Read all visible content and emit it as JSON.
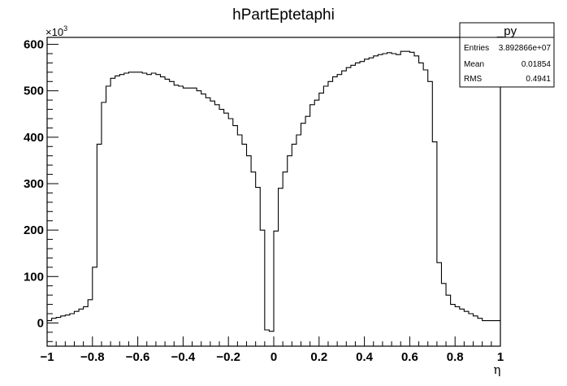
{
  "chart_data": {
    "type": "histogram",
    "title": "hPartEptetaphi",
    "xlabel": "η",
    "ylabel": "",
    "y_multiplier": "×10",
    "y_multiplier_exp": "3",
    "xlim": [
      -1,
      1
    ],
    "ylim": [
      -50,
      615
    ],
    "grid": false,
    "x_ticks": [
      -1,
      -0.8,
      -0.6,
      -0.4,
      -0.2,
      0,
      0.2,
      0.4,
      0.6,
      0.8,
      1
    ],
    "x_tick_labels": [
      "−1",
      "−0.8",
      "−0.6",
      "−0.4",
      "−0.2",
      "0",
      "0.2",
      "0.4",
      "0.6",
      "0.8",
      "1"
    ],
    "y_ticks": [
      0,
      100,
      200,
      300,
      400,
      500,
      600
    ],
    "y_tick_labels": [
      "0",
      "100",
      "200",
      "300",
      "400",
      "500",
      "600"
    ],
    "bins": {
      "start": -1,
      "width": 0.02
    },
    "values": [
      5,
      10,
      12,
      15,
      17,
      20,
      25,
      30,
      35,
      50,
      120,
      385,
      475,
      510,
      527,
      532,
      535,
      538,
      540,
      540,
      540,
      538,
      535,
      538,
      535,
      530,
      525,
      520,
      512,
      510,
      506,
      506,
      506,
      500,
      493,
      485,
      478,
      470,
      460,
      452,
      440,
      425,
      405,
      385,
      360,
      325,
      292,
      200,
      -15,
      -18,
      198,
      290,
      325,
      360,
      385,
      405,
      430,
      445,
      470,
      480,
      495,
      510,
      520,
      530,
      535,
      543,
      550,
      555,
      560,
      563,
      568,
      571,
      575,
      578,
      580,
      582,
      580,
      578,
      585,
      585,
      583,
      575,
      560,
      545,
      520,
      390,
      130,
      85,
      60,
      40,
      35,
      30,
      25,
      20,
      15,
      10,
      5,
      5,
      5,
      5
    ],
    "stats_box": {
      "title": "_py",
      "rows": [
        {
          "label": "Entries",
          "value": "3.892866e+07"
        },
        {
          "label": "Mean",
          "value": "0.01854"
        },
        {
          "label": "RMS",
          "value": "0.4941"
        }
      ]
    }
  }
}
